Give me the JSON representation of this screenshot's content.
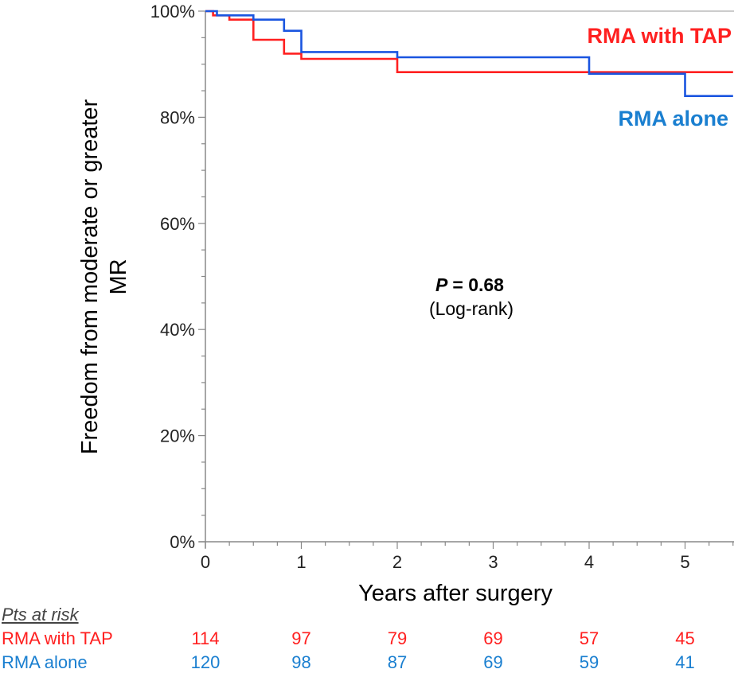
{
  "chart_data": {
    "type": "line",
    "subtype": "kaplan-meier step",
    "xlabel": "Years after surgery",
    "ylabel_line1": "Freedom from moderate or greater",
    "ylabel_line2": "MR",
    "xlim": [
      0,
      5.5
    ],
    "ylim": [
      0,
      100
    ],
    "x_ticks": [
      0,
      1,
      2,
      3,
      4,
      5
    ],
    "x_tick_labels": [
      "0",
      "1",
      "2",
      "3",
      "4",
      "5"
    ],
    "y_ticks": [
      0,
      20,
      40,
      60,
      80,
      100
    ],
    "y_tick_labels": [
      "0%",
      "20%",
      "40%",
      "60%",
      "80%",
      "100%"
    ],
    "series": [
      {
        "name": "RMA with TAP",
        "color": "#ff2020",
        "x": [
          0,
          0.08,
          0.08,
          0.25,
          0.25,
          0.5,
          0.5,
          0.82,
          0.82,
          1.0,
          1.0,
          2.0,
          2.0,
          5.5
        ],
        "y": [
          100,
          100,
          99.2,
          99.2,
          98.4,
          98.4,
          94.6,
          94.6,
          92.0,
          92.0,
          91.0,
          91.0,
          88.5,
          88.5
        ]
      },
      {
        "name": "RMA alone",
        "color": "#1a55e0",
        "x": [
          0,
          0.12,
          0.12,
          0.5,
          0.5,
          0.82,
          0.82,
          1.0,
          1.0,
          2.0,
          2.0,
          4.0,
          4.0,
          5.0,
          5.0,
          5.5
        ],
        "y": [
          100,
          100,
          99.2,
          99.2,
          98.4,
          98.4,
          96.3,
          96.3,
          92.3,
          92.3,
          91.3,
          91.3,
          88.2,
          88.2,
          84.0,
          84.0
        ]
      }
    ],
    "annotation": {
      "p_label": "P",
      "p_value": "= 0.68",
      "test": "(Log-rank)"
    }
  },
  "risk_table": {
    "header": "Pts at risk",
    "rows": [
      {
        "name": "RMA with TAP",
        "color": "#ff2020",
        "values": [
          "114",
          "97",
          "79",
          "69",
          "57",
          "45"
        ]
      },
      {
        "name": "RMA alone",
        "color": "#1a7fd0",
        "values": [
          "120",
          "98",
          "87",
          "69",
          "59",
          "41"
        ]
      }
    ]
  }
}
